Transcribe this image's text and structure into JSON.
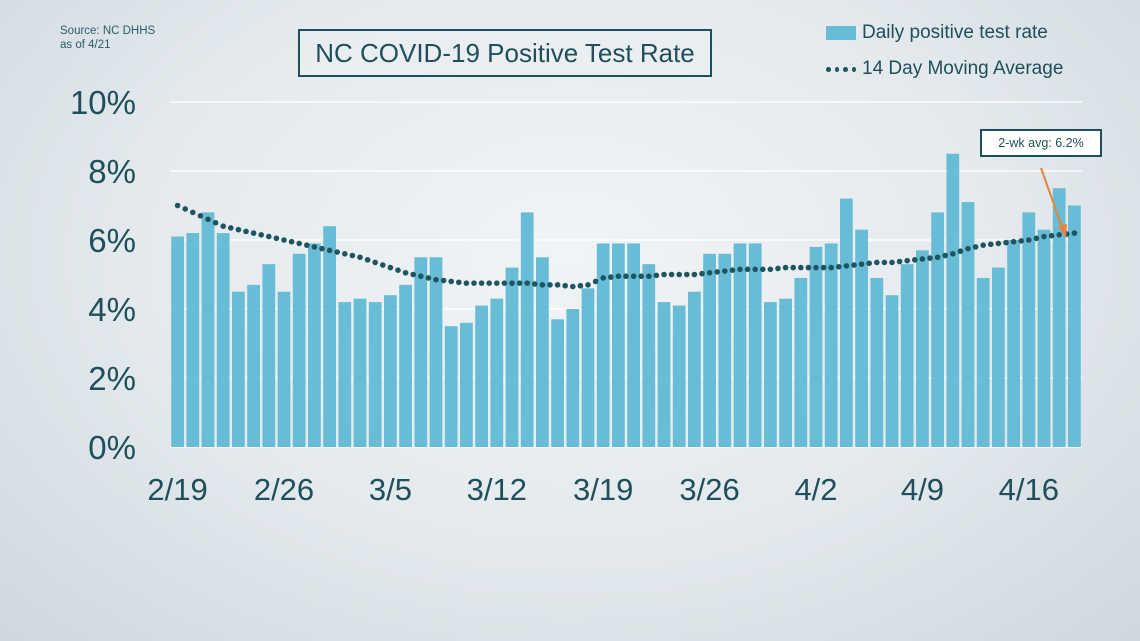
{
  "source_note": {
    "line1": "Source: NC DHHS",
    "line2": "as of 4/21"
  },
  "title": "NC COVID-19 Positive Test Rate",
  "legend": {
    "bar_label": "Daily positive test rate",
    "line_label": "14 Day Moving Average"
  },
  "callout": {
    "text": "2-wk avg: 6.2%"
  },
  "colors": {
    "bar": "#69bcd6",
    "dots": "#1f5560",
    "text": "#1f4f5a",
    "arrow": "#e8843a",
    "grid": "#ffffff"
  },
  "chart_data": {
    "type": "bar",
    "y_ticks": [
      "0%",
      "2%",
      "4%",
      "6%",
      "8%",
      "10%"
    ],
    "x_tick_labels": [
      "2/19",
      "2/26",
      "3/5",
      "3/12",
      "3/19",
      "3/26",
      "4/2",
      "4/9",
      "4/16"
    ],
    "ylim": [
      0,
      10
    ],
    "grid": true,
    "legend_position": "top-right",
    "series": [
      {
        "name": "Daily positive test rate",
        "type": "bar",
        "values": [
          6.1,
          6.2,
          6.8,
          6.2,
          4.5,
          4.7,
          5.3,
          4.5,
          5.6,
          5.9,
          6.4,
          4.2,
          4.3,
          4.2,
          4.4,
          4.7,
          5.5,
          5.5,
          3.5,
          3.6,
          4.1,
          4.3,
          5.2,
          6.8,
          5.5,
          3.7,
          4.0,
          4.6,
          5.9,
          5.9,
          5.9,
          5.3,
          4.2,
          4.1,
          4.5,
          5.6,
          5.6,
          5.9,
          5.9,
          4.2,
          4.3,
          4.9,
          5.8,
          5.9,
          7.2,
          6.3,
          4.9,
          4.4,
          5.3,
          5.7,
          6.8,
          8.5,
          7.1,
          4.9,
          5.2,
          6.0,
          6.8,
          6.3,
          7.5,
          7.0
        ]
      },
      {
        "name": "14 Day Moving Average",
        "type": "line",
        "values": [
          7.0,
          6.8,
          6.6,
          6.4,
          6.3,
          6.2,
          6.1,
          6.0,
          5.9,
          5.8,
          5.7,
          5.6,
          5.5,
          5.35,
          5.2,
          5.05,
          4.95,
          4.85,
          4.8,
          4.75,
          4.75,
          4.75,
          4.75,
          4.75,
          4.7,
          4.7,
          4.65,
          4.7,
          4.9,
          4.95,
          4.95,
          4.95,
          5.0,
          5.0,
          5.0,
          5.05,
          5.1,
          5.15,
          5.15,
          5.15,
          5.2,
          5.2,
          5.2,
          5.2,
          5.25,
          5.3,
          5.35,
          5.35,
          5.4,
          5.45,
          5.5,
          5.6,
          5.75,
          5.85,
          5.9,
          5.95,
          6.0,
          6.1,
          6.15,
          6.2
        ]
      }
    ]
  }
}
